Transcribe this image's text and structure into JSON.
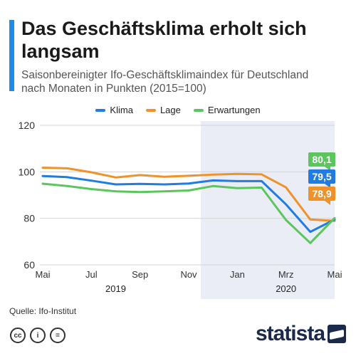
{
  "title": "Das Geschäftsklima erholt sich langsam",
  "subtitle": "Saisonbereinigter Ifo-Geschäftsklimaindex für Deutschland nach Monaten in Punkten (2015=100)",
  "source": "Quelle: Ifo-Institut",
  "brand": "statista",
  "license_icons": [
    "cc-icon",
    "person-icon",
    "equals-icon"
  ],
  "license_labels": [
    "cc",
    "i",
    "="
  ],
  "colors": {
    "Klima": "#1f7ce3",
    "Lage": "#f0922a",
    "Erwartungen": "#5ac65c",
    "highlight_band": "#eaedf5",
    "accent": "#1f8ce3"
  },
  "chart_data": {
    "type": "line",
    "x": [
      "2019-05",
      "2019-06",
      "2019-07",
      "2019-08",
      "2019-09",
      "2019-10",
      "2019-11",
      "2019-12",
      "2020-01",
      "2020-02",
      "2020-03",
      "2020-04",
      "2020-05"
    ],
    "x_tick_labels": [
      "Mai",
      "Jul",
      "Sep",
      "Nov",
      "Jan",
      "Mrz",
      "Mai"
    ],
    "x_tick_positions": [
      "2019-05",
      "2019-07",
      "2019-09",
      "2019-11",
      "2020-01",
      "2020-03",
      "2020-05"
    ],
    "year_labels": [
      {
        "label": "2019",
        "center": "2019-08"
      },
      {
        "label": "2020",
        "center": "2020-03"
      }
    ],
    "highlight_from": "2019-12",
    "ylim": [
      60,
      120
    ],
    "yticks": [
      60,
      80,
      100,
      120
    ],
    "grid": true,
    "legend": "top-center",
    "series": [
      {
        "name": "Klima",
        "values": [
          98.2,
          97.7,
          96.2,
          94.6,
          94.8,
          94.6,
          95.0,
          96.3,
          96.0,
          96.0,
          86.0,
          74.2,
          79.5
        ]
      },
      {
        "name": "Lage",
        "values": [
          101.8,
          101.5,
          99.8,
          97.6,
          98.6,
          97.9,
          98.3,
          98.8,
          99.1,
          98.9,
          93.3,
          79.5,
          78.9
        ]
      },
      {
        "name": "Erwartungen",
        "values": [
          94.9,
          93.9,
          92.6,
          91.6,
          91.3,
          91.6,
          92.0,
          93.9,
          93.0,
          93.2,
          79.3,
          69.4,
          80.1
        ]
      }
    ],
    "end_labels": [
      {
        "series": "Erwartungen",
        "text": "80,1"
      },
      {
        "series": "Klima",
        "text": "79,5"
      },
      {
        "series": "Lage",
        "text": "78,9"
      }
    ]
  }
}
